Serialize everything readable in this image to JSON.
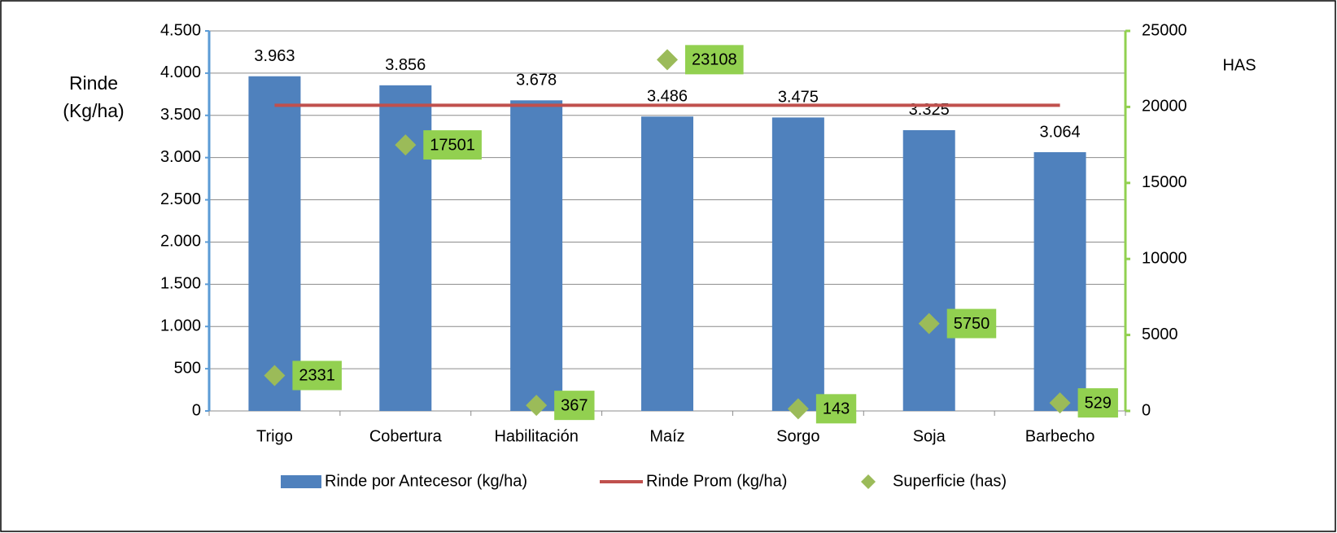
{
  "chart_data": {
    "type": "bar",
    "ylabel": [
      "Rinde",
      "(Kg/ha)"
    ],
    "y2label": "HAS",
    "categories": [
      "Trigo",
      "Cobertura",
      "Habilitación",
      "Maíz",
      "Sorgo",
      "Soja",
      "Barbecho"
    ],
    "series": [
      {
        "name": "Rinde por Antecesor (kg/ha)",
        "type": "bar",
        "color": "#4f81bd",
        "values": [
          3963,
          3856,
          3678,
          3486,
          3475,
          3325,
          3064
        ],
        "value_labels": [
          "3.963",
          "3.856",
          "3.678",
          "3.486",
          "3.475",
          "3.325",
          "3.064"
        ]
      },
      {
        "name": "Rinde Prom (kg/ha)",
        "type": "line",
        "color": "#c0504d",
        "values": [
          3620,
          3620,
          3620,
          3620,
          3620,
          3620,
          3620
        ]
      },
      {
        "name": "Superficie (has)",
        "type": "scatter",
        "color": "#9bbb59",
        "axis": "y2",
        "label_color": "#92d050",
        "values": [
          2331,
          17501,
          367,
          23108,
          143,
          5750,
          529
        ]
      }
    ],
    "ylim": [
      0,
      4500
    ],
    "yticks": [
      0,
      500,
      {
        "value": 1000,
        "label": "1.000"
      },
      {
        "value": 1500,
        "label": "1.500"
      },
      {
        "value": 2000,
        "label": "2.000"
      },
      {
        "value": 2500,
        "label": "2.500"
      },
      {
        "value": 3000,
        "label": "3.000"
      },
      {
        "value": 3500,
        "label": "3.500"
      },
      {
        "value": 4000,
        "label": "4.000"
      },
      {
        "value": 4500,
        "label": "4.500"
      }
    ],
    "y2lim": [
      0,
      25000
    ],
    "y2ticks": [
      0,
      5000,
      10000,
      15000,
      20000,
      25000
    ],
    "grid": true,
    "legend": "bottom"
  }
}
